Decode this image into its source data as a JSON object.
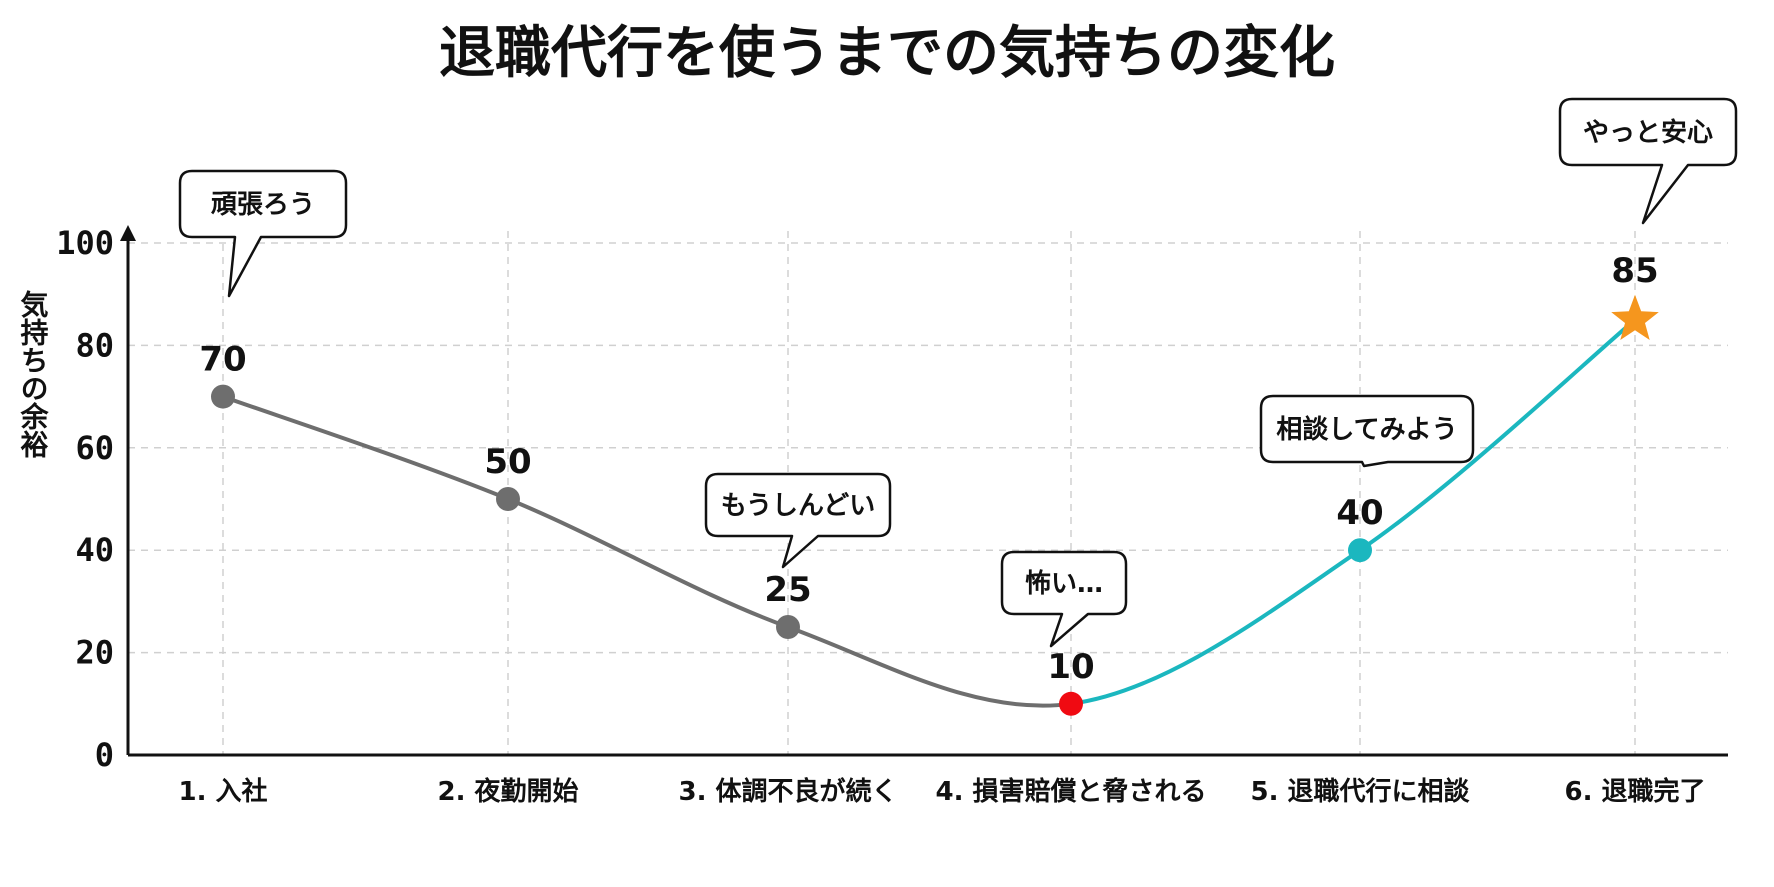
{
  "chart_data": {
    "type": "line",
    "title": "退職代行を使うまでの気持ちの変化",
    "xlabel": "",
    "ylabel": "気持ちの余裕",
    "ylim": [
      0,
      100
    ],
    "yticks": [
      0,
      20,
      40,
      60,
      80,
      100
    ],
    "grid": true,
    "categories": [
      "1. 入社",
      "2. 夜勤開始",
      "3. 体調不良が続く",
      "4. 損害賠償と脅される",
      "5. 退職代行に相談",
      "6. 退職完了"
    ],
    "values": [
      70,
      50,
      25,
      10,
      40,
      85
    ],
    "data_labels": [
      "70",
      "50",
      "25",
      "10",
      "40",
      "85"
    ],
    "bubbles": [
      {
        "index": 0,
        "text": "頑張ろう"
      },
      {
        "index": 2,
        "text": "もうしんどい"
      },
      {
        "index": 3,
        "text": "怖い…"
      },
      {
        "index": 4,
        "text": "相談してみよう"
      },
      {
        "index": 5,
        "text": "やっと安心"
      }
    ],
    "colors": {
      "gray_segment": "#6e6e6e",
      "teal_segment": "#1bb7bf",
      "lowest_point": "#f00a12",
      "final_star": "#f5961e",
      "grid": "#d0d0d0",
      "axis": "#111111"
    },
    "markers": [
      "circle",
      "circle",
      "circle",
      "circle",
      "circle",
      "star"
    ]
  }
}
